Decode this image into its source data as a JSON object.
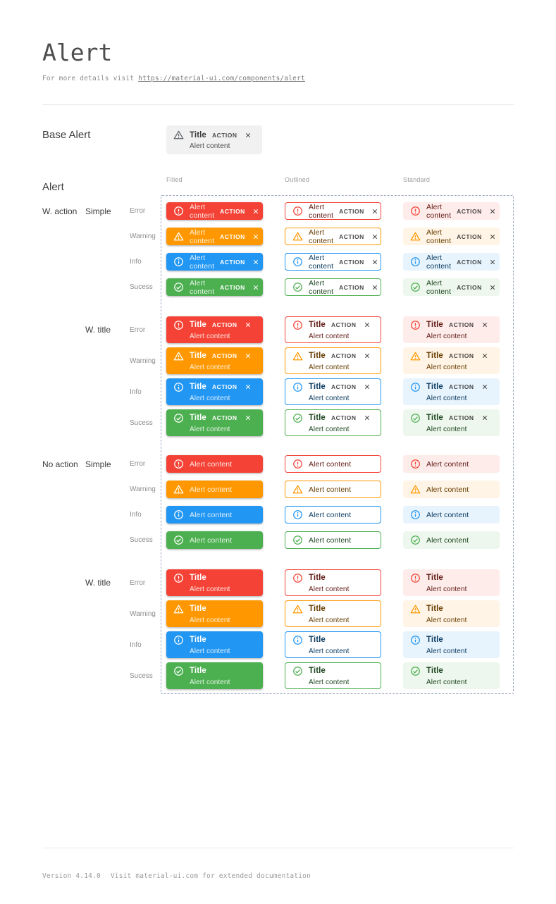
{
  "page": {
    "title": "Alert",
    "subtitle_prefix": "For more details visit ",
    "subtitle_link": "https://material-ui.com/components/alert",
    "footer_version": "Version 4.14.0",
    "footer_note": "Visit material-ui.com for extended documentation"
  },
  "base_alert": {
    "section_label": "Base Alert",
    "title": "Title",
    "content": "Alert content",
    "action_label": "ACTION",
    "icon": "warning-icon",
    "colors": {
      "bg": "#f1f1f1",
      "icon": "#5f6368",
      "title": "#37393b",
      "content": "#4a4d50",
      "action": "#4a4d50",
      "close": "#6c7073"
    }
  },
  "alert_matrix": {
    "section_label": "Alert",
    "column_headers": [
      "Filled",
      "Outlined",
      "Standard"
    ],
    "alert_title": "Title",
    "alert_content": "Alert content",
    "action_label": "ACTION",
    "variants": [
      "filled",
      "outlined",
      "standard"
    ],
    "groups": [
      {
        "label": "W. action",
        "subgroups": [
          {
            "label": "Simple",
            "titled": false,
            "action": true
          },
          {
            "label": "W. title",
            "titled": true,
            "action": true
          }
        ]
      },
      {
        "label": "No action",
        "subgroups": [
          {
            "label": "Simple",
            "titled": false,
            "action": false
          },
          {
            "label": "W. title",
            "titled": true,
            "action": false
          }
        ]
      }
    ],
    "severities": [
      {
        "id": "error",
        "label": "Error",
        "icon": "error-icon",
        "main": "#f44336",
        "standard_bg": "#fdecea",
        "dark_text": "#611a15"
      },
      {
        "id": "warning",
        "label": "Warning",
        "icon": "warning-icon",
        "main": "#ff9800",
        "standard_bg": "#fff4e5",
        "dark_text": "#663c00"
      },
      {
        "id": "info",
        "label": "Info",
        "icon": "info-icon",
        "main": "#2196f3",
        "standard_bg": "#e8f4fd",
        "dark_text": "#0d3c61"
      },
      {
        "id": "sucess",
        "label": "Sucess",
        "icon": "success-icon",
        "main": "#4caf50",
        "standard_bg": "#edf7ed",
        "dark_text": "#1e4620"
      }
    ],
    "style": {
      "filled_text": "#ffffff",
      "filled_content": "rgba(255,255,255,0.85)",
      "neutral_action": "rgba(0,0,0,0.72)",
      "dashed_border": "#9fa8c3"
    }
  }
}
